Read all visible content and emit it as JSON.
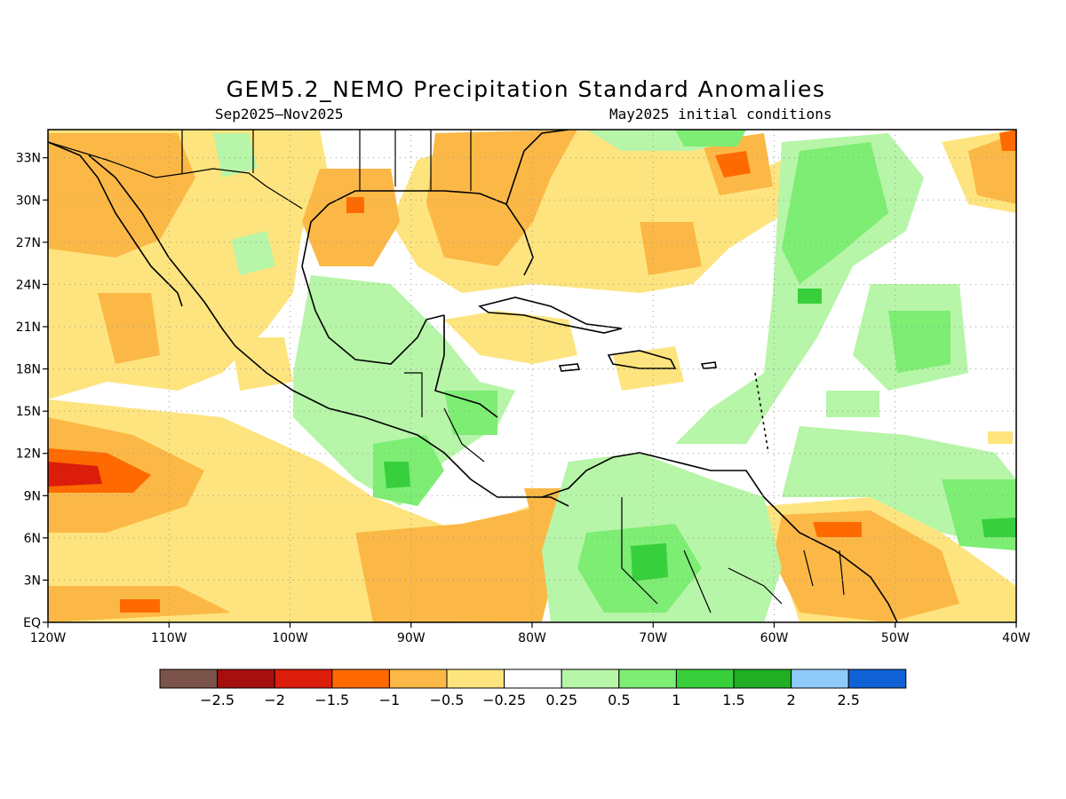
{
  "title": "GEM5.2_NEMO Precipitation Standard Anomalies",
  "subtitle_left": "Sep2025—Nov2025",
  "subtitle_right": "May2025 initial conditions",
  "chart_data": {
    "type": "heatmap",
    "lon_range": [
      -120,
      -40
    ],
    "lat_range": [
      0,
      35
    ],
    "x_tick_labels": [
      "120W",
      "110W",
      "100W",
      "90W",
      "80W",
      "70W",
      "60W",
      "50W",
      "40W"
    ],
    "y_tick_labels": [
      "EQ",
      "3N",
      "6N",
      "9N",
      "12N",
      "15N",
      "18N",
      "21N",
      "24N",
      "27N",
      "30N",
      "33N"
    ],
    "grid": true,
    "colorbar": {
      "colors": [
        "#7a534a",
        "#a50f0f",
        "#dc1d0c",
        "#ff6a00",
        "#fbb846",
        "#fee47e",
        "#ffffff",
        "#b7f5a8",
        "#7ded74",
        "#37d03c",
        "#1fae24",
        "#8fcbfa",
        "#1161d6"
      ],
      "labels": [
        "−2.5",
        "−2",
        "−1.5",
        "−1",
        "−0.5",
        "−0.25",
        "0.25",
        "0.5",
        "1",
        "1.5",
        "2",
        "2.5"
      ]
    }
  },
  "legend_colors": {
    "neg_1": "#fbb846",
    "neg_025": "#fee47e",
    "pos_025": "#b7f5a8",
    "pos_05": "#7ded74",
    "pos_1": "#37d03c",
    "neg_15": "#ff6a00",
    "neg_2": "#dc1d0c"
  }
}
